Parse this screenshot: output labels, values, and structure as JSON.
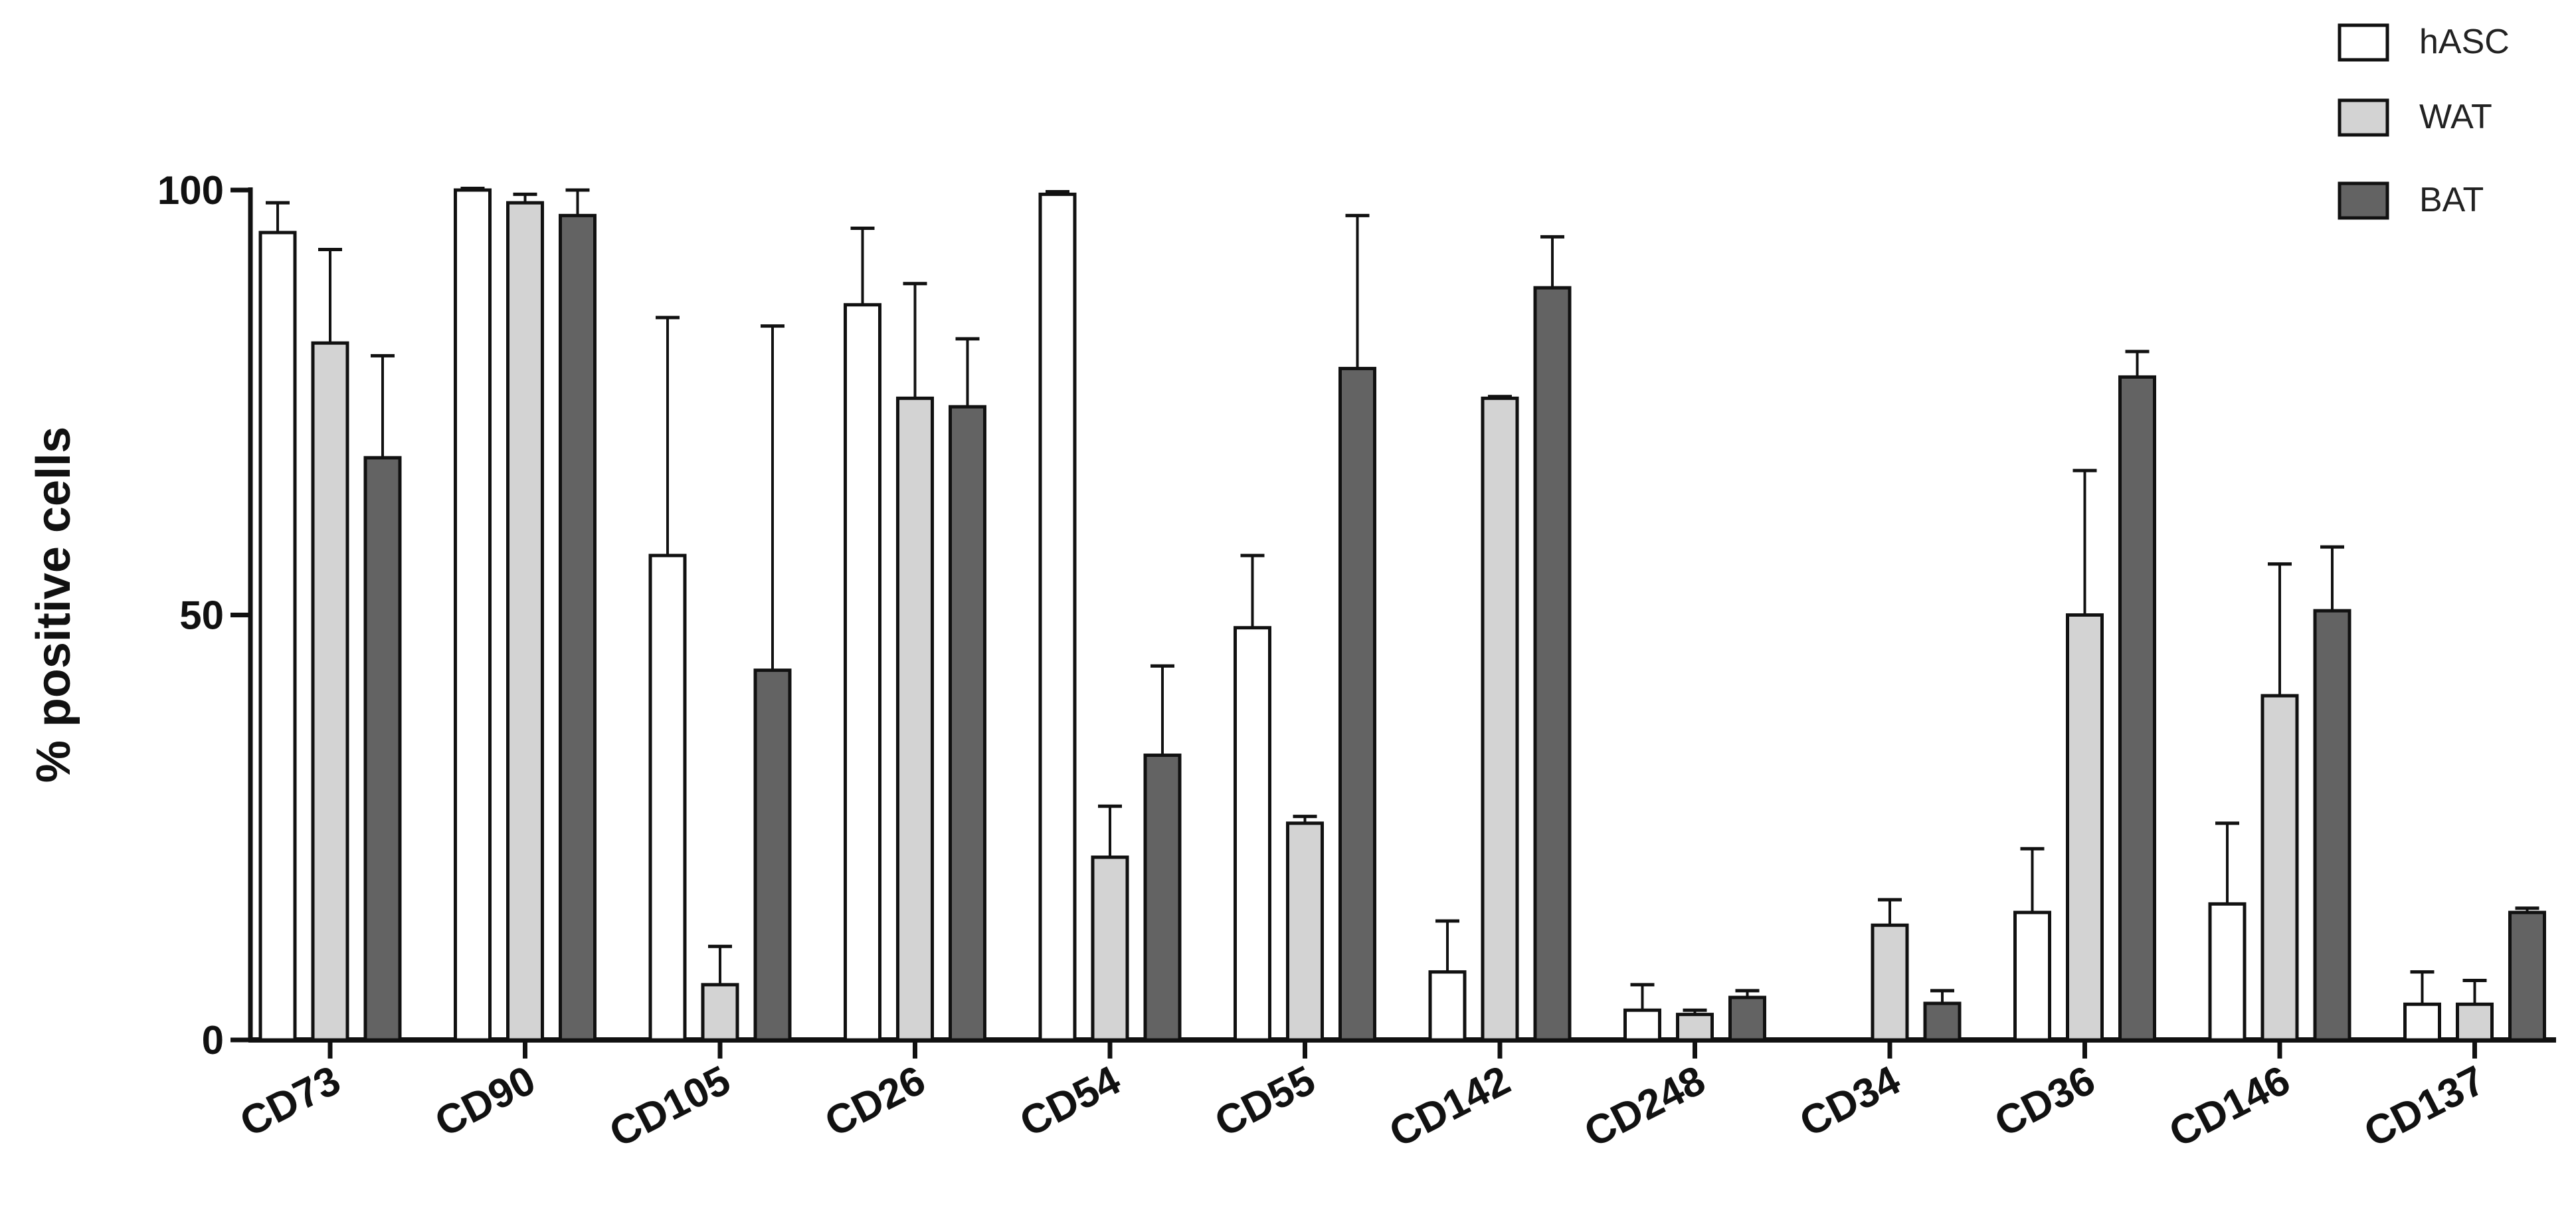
{
  "chart_data": {
    "type": "bar",
    "ylabel": "% positive cells",
    "xlabel": "",
    "ylim": [
      0,
      100
    ],
    "yticks": [
      "0",
      "50",
      "100"
    ],
    "categories": [
      "CD73",
      "CD90",
      "CD105",
      "CD26",
      "CD54",
      "CD55",
      "CD142",
      "CD248",
      "CD34",
      "CD36",
      "CD146",
      "CD137"
    ],
    "series": [
      {
        "name": "hASC",
        "color": "#ffffff",
        "values": [
          95,
          100,
          57,
          86.5,
          99.5,
          48.5,
          8,
          3.5,
          0,
          15,
          16,
          4.2
        ],
        "errors": [
          3.5,
          0.2,
          28,
          9,
          0.3,
          8.5,
          6,
          3,
          0,
          7.5,
          9.5,
          3.8
        ]
      },
      {
        "name": "WAT",
        "color": "#d3d3d3",
        "values": [
          82,
          98.5,
          6.5,
          75.5,
          21.5,
          25.5,
          75.5,
          3,
          13.5,
          50,
          40.5,
          4.2
        ],
        "errors": [
          11,
          1,
          4.5,
          13.5,
          6,
          0.8,
          0.2,
          0.5,
          3,
          17,
          15.5,
          2.8
        ]
      },
      {
        "name": "BAT",
        "color": "#636363",
        "values": [
          68.5,
          97,
          43.5,
          74.5,
          33.5,
          79,
          88.5,
          5,
          4.3,
          78,
          50.5,
          15
        ],
        "errors": [
          12,
          3,
          40.5,
          8,
          10.5,
          18,
          6,
          0.8,
          1.5,
          3,
          7.5,
          0.5
        ]
      }
    ],
    "legend_position": "top-right",
    "grid": false
  }
}
